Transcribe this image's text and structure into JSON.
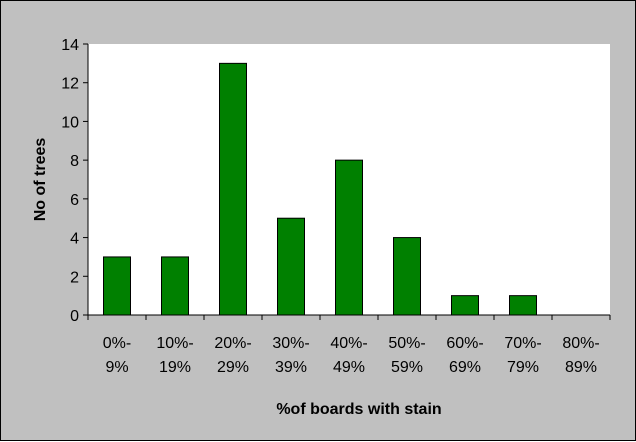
{
  "chart_data": {
    "type": "bar",
    "title": "",
    "xlabel": "%of boards with stain",
    "ylabel": "No of trees",
    "categories": [
      [
        "0%-",
        "9%"
      ],
      [
        "10%-",
        "19%"
      ],
      [
        "20%-",
        "29%"
      ],
      [
        "30%-",
        "39%"
      ],
      [
        "40%-",
        "49%"
      ],
      [
        "50%-",
        "59%"
      ],
      [
        "60%-",
        "69%"
      ],
      [
        "70%-",
        "79%"
      ],
      [
        "80%-",
        "89%"
      ]
    ],
    "values": [
      3,
      3,
      13,
      5,
      8,
      4,
      1,
      1,
      0
    ],
    "ylim": [
      0,
      14
    ],
    "yticks": [
      0,
      2,
      4,
      6,
      8,
      10,
      12,
      14
    ],
    "grid": false,
    "legend": "none",
    "colors": {
      "bar": "#008000",
      "plot_background": "#ffffff",
      "chart_background": "#c0c0c0"
    }
  }
}
